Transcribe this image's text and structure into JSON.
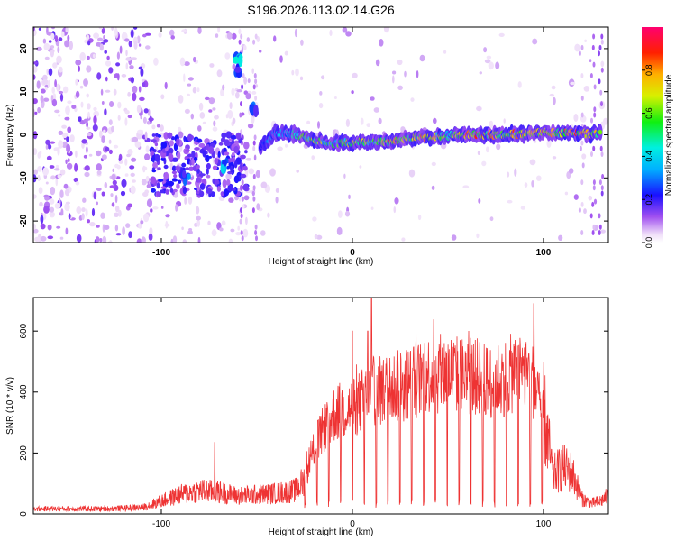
{
  "title": "S196.2026.113.02.14.G26",
  "chart_data": [
    {
      "type": "heatmap",
      "xlabel": "Height of straight line (km)",
      "ylabel": "Frequency (Hz)",
      "xlim": [
        -167,
        134
      ],
      "ylim": [
        -25,
        25
      ],
      "xticks": [
        -100,
        0,
        100
      ],
      "xtick_labels": [
        "-100",
        "0",
        "100"
      ],
      "yticks": [
        -20,
        -10,
        0,
        10,
        20
      ],
      "ytick_labels": [
        "-20",
        "-10",
        "0",
        "10",
        "20"
      ],
      "colorbar": {
        "label": "Normalized spectral amplitude",
        "range": [
          0,
          1
        ],
        "ticks": [
          0.0,
          0.2,
          0.4,
          0.6,
          0.8
        ],
        "tick_labels": [
          "0.0",
          "0.2",
          "0.4",
          "0.6",
          "0.8"
        ]
      },
      "ridge": {
        "x": [
          -48,
          -40,
          -30,
          -20,
          -10,
          0,
          10,
          20,
          30,
          40,
          50,
          60,
          70,
          80,
          90,
          100,
          110,
          120,
          130
        ],
        "freq": [
          -2.5,
          0.5,
          0.2,
          -1.2,
          -2.0,
          -1.8,
          -1.5,
          -1.6,
          -0.8,
          -0.6,
          -0.2,
          0.0,
          0.0,
          0.1,
          0.2,
          0.5,
          0.4,
          0.3,
          0.3
        ],
        "amplitude": [
          0.25,
          0.4,
          0.5,
          0.75,
          0.55,
          0.7,
          0.65,
          0.85,
          0.8,
          0.85,
          0.6,
          0.85,
          0.85,
          0.85,
          0.8,
          0.8,
          0.8,
          0.9,
          0.7
        ]
      },
      "hotspots": [
        {
          "x": -60,
          "freq": 18,
          "amplitude": 0.45
        },
        {
          "x": -60,
          "freq": 15,
          "amplitude": 0.35
        },
        {
          "x": -87,
          "freq": -10,
          "amplitude": 0.35
        },
        {
          "x": -67,
          "freq": -7,
          "amplitude": 0.4
        },
        {
          "x": -51,
          "freq": 6,
          "amplitude": 0.3
        }
      ]
    },
    {
      "type": "line",
      "xlabel": "Height of straight line (km)",
      "ylabel": "SNR (10 * v/v)",
      "xlim": [
        -167,
        134
      ],
      "ylim": [
        0,
        710
      ],
      "xticks": [
        -100,
        0,
        100
      ],
      "xtick_labels": [
        "-100",
        "0",
        "100"
      ],
      "yticks": [
        0,
        200,
        400,
        600
      ],
      "ytick_labels": [
        "0",
        "200",
        "400",
        "600"
      ],
      "color": "#ee3333",
      "series": [
        {
          "name": "SNR",
          "x": [
            -167,
            -150,
            -130,
            -110,
            -100,
            -90,
            -80,
            -70,
            -60,
            -50,
            -40,
            -30,
            -25,
            -20,
            -15,
            -10,
            -5,
            0,
            5,
            10,
            15,
            20,
            25,
            30,
            35,
            40,
            45,
            50,
            55,
            60,
            65,
            70,
            75,
            80,
            85,
            90,
            95,
            100,
            105,
            110,
            115,
            120,
            125,
            130,
            134
          ],
          "y": [
            20,
            20,
            20,
            25,
            50,
            75,
            90,
            85,
            70,
            75,
            80,
            90,
            130,
            280,
            360,
            420,
            440,
            450,
            480,
            520,
            520,
            540,
            540,
            560,
            570,
            590,
            590,
            600,
            590,
            580,
            580,
            560,
            560,
            580,
            600,
            600,
            560,
            400,
            150,
            180,
            160,
            60,
            40,
            50,
            70
          ],
          "peaks": [
            {
              "x": -72,
              "y": 235
            },
            {
              "x": 10,
              "y": 710
            },
            {
              "x": 95,
              "y": 690
            },
            {
              "x": 0,
              "y": 600
            },
            {
              "x": 8,
              "y": 600
            }
          ]
        }
      ]
    }
  ]
}
